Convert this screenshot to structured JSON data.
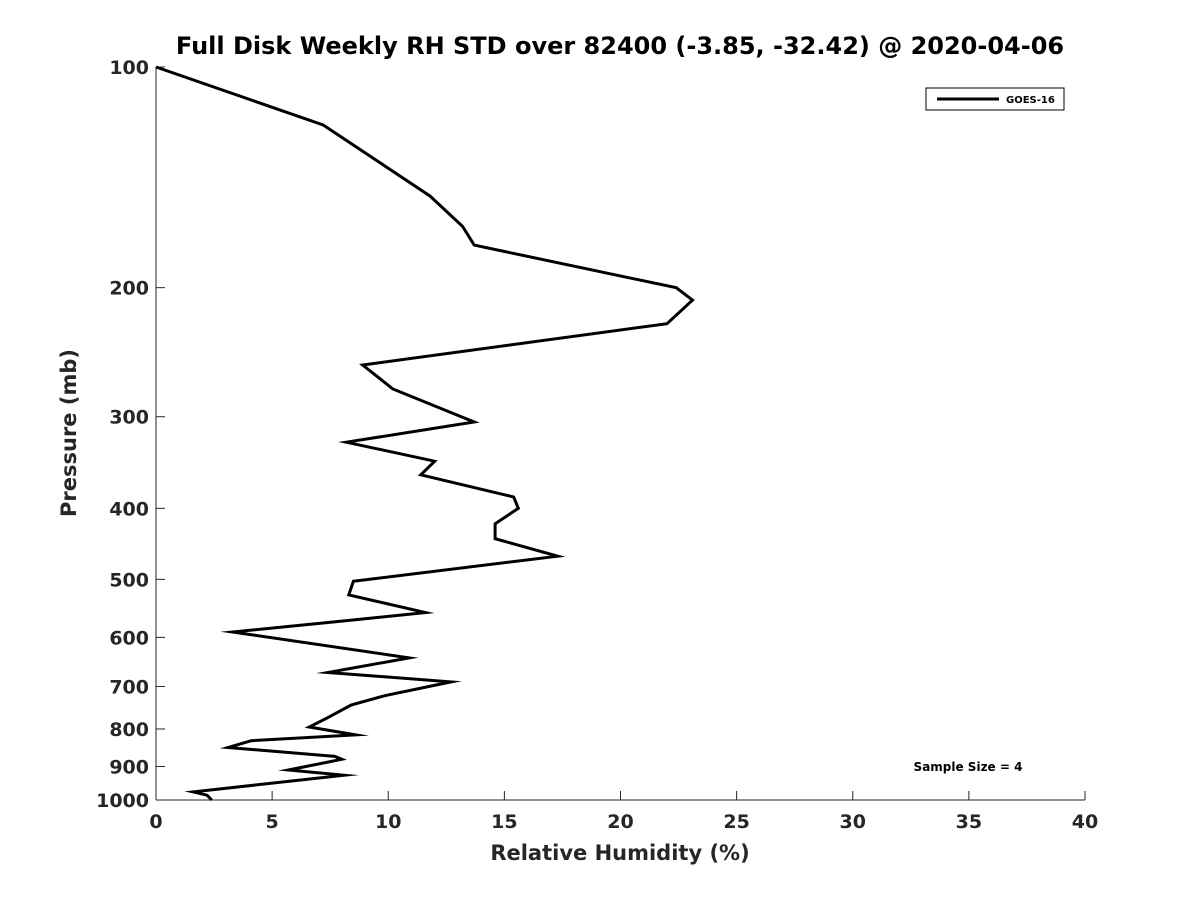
{
  "chart_data": {
    "type": "line",
    "title": "Full Disk Weekly RH STD over 82400 (-3.85, -32.42) @ 2020-04-06",
    "xlabel": "Relative Humidity (%)",
    "ylabel": "Pressure (mb)",
    "xlim": [
      0,
      40
    ],
    "ylim": [
      100,
      1000
    ],
    "yscale": "log",
    "y_reversed": true,
    "grid": false,
    "legend_position": "top-right",
    "xticks": [
      0,
      5,
      10,
      15,
      20,
      25,
      30,
      35,
      40
    ],
    "xtick_labels": [
      "0",
      "5",
      "10",
      "15",
      "20",
      "25",
      "30",
      "35",
      "40"
    ],
    "yticks": [
      100,
      200,
      300,
      400,
      500,
      600,
      700,
      800,
      900,
      1000
    ],
    "ytick_labels": [
      "100",
      "200",
      "300",
      "400",
      "500",
      "600",
      "700",
      "800",
      "900",
      "1000"
    ],
    "series": [
      {
        "name": "GOES-16",
        "color": "#000000",
        "x": [
          0.0,
          7.2,
          11.8,
          13.2,
          13.7,
          22.4,
          23.1,
          22.0,
          8.9,
          10.2,
          13.7,
          8.2,
          12.0,
          11.4,
          15.4,
          15.6,
          14.6,
          14.6,
          17.3,
          8.5,
          8.3,
          11.6,
          8.0,
          3.3,
          10.9,
          7.4,
          12.7,
          9.9,
          8.4,
          7.4,
          6.6,
          8.6,
          4.1,
          3.1,
          7.7,
          8.0,
          5.7,
          8.1,
          1.6,
          2.2,
          2.4
        ],
        "y": [
          100,
          120,
          150,
          165,
          175,
          200,
          208,
          224,
          255,
          275,
          305,
          325,
          345,
          360,
          386,
          400,
          420,
          440,
          465,
          503,
          525,
          555,
          570,
          590,
          640,
          670,
          690,
          720,
          742,
          772,
          795,
          815,
          830,
          848,
          872,
          880,
          910,
          925,
          975,
          985,
          1000
        ]
      }
    ],
    "annotations": [
      "Sample Size = 4"
    ]
  }
}
